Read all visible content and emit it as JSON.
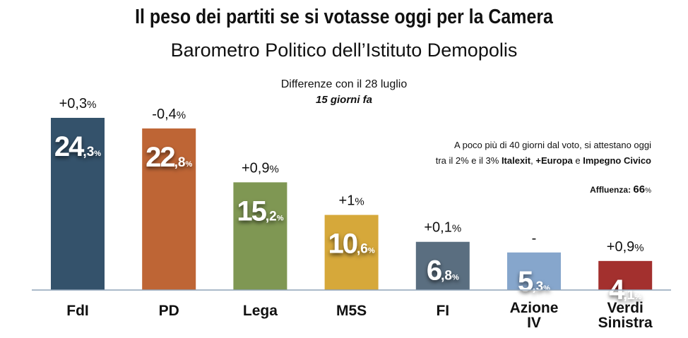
{
  "title": "Il peso dei partiti se si votasse oggi per la Camera",
  "subtitle": "Barometro Politico dell’Istituto Demopolis",
  "diff_label": "Differenze con il 28 luglio",
  "diff_sub": "15 giorni fa",
  "note": {
    "line1": "A poco più di 40 giorni dal voto, si attestano oggi",
    "line2_pre": "tra il 2% e il 3% ",
    "p1": "Italexit",
    "sep1": ", ",
    "p2": "+Europa",
    "sep2": " e ",
    "p3": "Impegno Civico"
  },
  "turnout": {
    "label": "Affluenza: ",
    "value": "66",
    "unit": "%"
  },
  "chart_data": {
    "type": "bar",
    "title": "Il peso dei partiti se si votasse oggi per la Camera",
    "ylim": [
      0,
      25
    ],
    "grid": false,
    "categories": [
      [
        "FdI"
      ],
      [
        "PD"
      ],
      [
        "Lega"
      ],
      [
        "M5S"
      ],
      [
        "FI"
      ],
      [
        "Azione",
        "IV"
      ],
      [
        "Verdi",
        "Sinistra"
      ]
    ],
    "values": [
      24.3,
      22.8,
      15.2,
      10.6,
      6.8,
      5.3,
      4.1
    ],
    "value_labels": [
      [
        "24",
        ",3",
        "%"
      ],
      [
        "22",
        ",8",
        "%"
      ],
      [
        "15",
        ",2",
        "%"
      ],
      [
        "10",
        ",6",
        "%"
      ],
      [
        "6",
        ",8",
        "%"
      ],
      [
        "5",
        ",3",
        "%"
      ],
      [
        "4",
        ",1",
        "%"
      ]
    ],
    "changes": [
      [
        "+0,3",
        "%"
      ],
      [
        "-0,4",
        "%"
      ],
      [
        "+0,9",
        "%"
      ],
      [
        "+1",
        "%"
      ],
      [
        "+0,1",
        "%"
      ],
      [
        "-",
        ""
      ],
      [
        "+0,9",
        "%"
      ]
    ],
    "colors": [
      "#34526b",
      "#be6535",
      "#7f9753",
      "#d6a83a",
      "#5a6e80",
      "#86a6cc",
      "#a3302e"
    ]
  }
}
